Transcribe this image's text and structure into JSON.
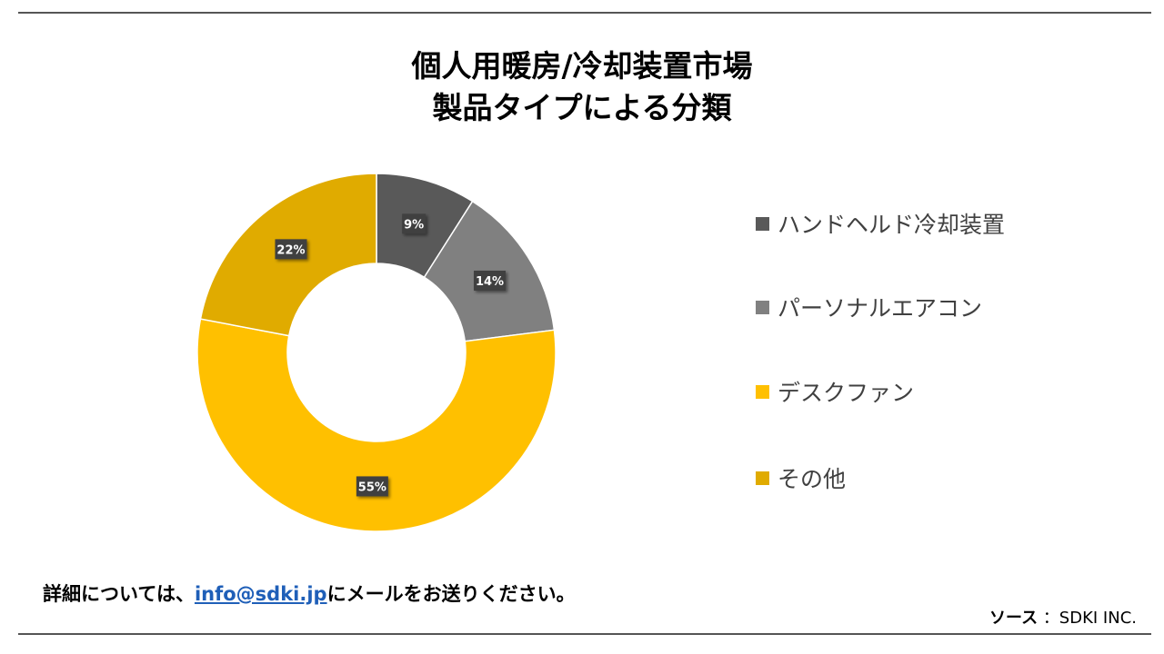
{
  "title_line1": "個人用暖房/冷却装置市場",
  "title_line2": "製品タイプによる分類",
  "chart_data": {
    "type": "pie",
    "donut": true,
    "categories": [
      "ハンドヘルド冷却装置",
      "パーソナルエアコン",
      "デスクファン",
      "その他"
    ],
    "values": [
      9,
      14,
      55,
      22
    ],
    "labels": [
      "9%",
      "14%",
      "55%",
      "22%"
    ],
    "colors": [
      "#595959",
      "#808080",
      "#ffc000",
      "#e0ab00"
    ],
    "legend": "right"
  },
  "contact": {
    "prefix": "詳細については、",
    "email": "info@sdki.jp",
    "suffix": "にメールをお送りください。"
  },
  "source": {
    "label": "ソース",
    "value": "：SDKI INC."
  }
}
